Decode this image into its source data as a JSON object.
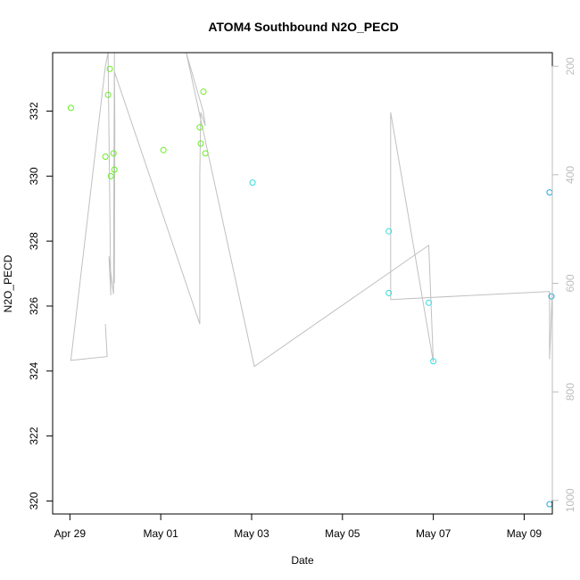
{
  "chart_data": {
    "type": "scatter",
    "title": "ATOM4 Southbound N2O_PECD",
    "xlabel": "Date",
    "ylabel": "N2O_PECD",
    "x_ticks": [
      {
        "day": 0,
        "label": "Apr 29"
      },
      {
        "day": 2,
        "label": "May 01"
      },
      {
        "day": 4,
        "label": "May 03"
      },
      {
        "day": 6,
        "label": "May 05"
      },
      {
        "day": 8,
        "label": "May 07"
      },
      {
        "day": 10,
        "label": "May 09"
      }
    ],
    "xlim": [
      -0.38,
      10.62
    ],
    "ylim": [
      319.6,
      333.8
    ],
    "y_ticks": [
      320,
      322,
      324,
      326,
      328,
      330,
      332
    ],
    "y2_ticks": [
      200,
      400,
      600,
      800,
      1000
    ],
    "y2lim": [
      1025,
      175
    ],
    "series": [
      {
        "color": "#66ee22",
        "points": [
          {
            "day": 0.02,
            "y": 332.1
          },
          {
            "day": 0.78,
            "y": 330.6
          },
          {
            "day": 0.84,
            "y": 332.5
          },
          {
            "day": 0.88,
            "y": 333.3
          },
          {
            "day": 0.9,
            "y": 330.0
          },
          {
            "day": 0.96,
            "y": 330.7
          },
          {
            "day": 0.98,
            "y": 330.2
          },
          {
            "day": 2.06,
            "y": 330.8
          },
          {
            "day": 2.86,
            "y": 331.5
          },
          {
            "day": 2.88,
            "y": 331.0
          },
          {
            "day": 2.94,
            "y": 332.6
          },
          {
            "day": 2.98,
            "y": 330.7
          }
        ]
      },
      {
        "color": "#33dddd",
        "points": [
          {
            "day": 4.02,
            "y": 329.8
          },
          {
            "day": 7.02,
            "y": 328.3
          },
          {
            "day": 7.02,
            "y": 326.4
          },
          {
            "day": 7.9,
            "y": 326.1
          },
          {
            "day": 8.0,
            "y": 324.3
          }
        ]
      },
      {
        "color": "#22aadd",
        "points": [
          {
            "day": 10.56,
            "y": 329.5
          },
          {
            "day": 10.6,
            "y": 326.3
          },
          {
            "day": 10.56,
            "y": 319.9
          }
        ]
      }
    ],
    "altitude_line": {
      "color": "#c0c0c0",
      "points": [
        {
          "day": 0.78,
          "alt": 675
        },
        {
          "day": 0.82,
          "alt": 735
        },
        {
          "day": 0.02,
          "alt": 742
        },
        {
          "day": 0.78,
          "alt": 200
        },
        {
          "day": 0.84,
          "alt": 175
        },
        {
          "day": 0.9,
          "alt": 622
        },
        {
          "day": 0.86,
          "alt": 550
        },
        {
          "day": 0.92,
          "alt": 595
        },
        {
          "day": 0.96,
          "alt": 620
        },
        {
          "day": 0.98,
          "alt": 175
        },
        {
          "day": 0.98,
          "alt": 200
        },
        {
          "day": 0.99,
          "alt": 300
        },
        {
          "day": 0.98,
          "alt": 600
        },
        {
          "day": 0.98,
          "alt": 175
        },
        {
          "day": 0.98,
          "alt": 200
        },
        {
          "day": 0.98,
          "alt": 210
        },
        {
          "day": 2.86,
          "alt": 675
        },
        {
          "day": 2.86,
          "alt": 400
        },
        {
          "day": 2.88,
          "alt": 285
        },
        {
          "day": 2.98,
          "alt": 310
        },
        {
          "day": 2.94,
          "alt": 285
        },
        {
          "day": 2.56,
          "alt": 175
        },
        {
          "day": 4.06,
          "alt": 753
        },
        {
          "day": 7.9,
          "alt": 530
        },
        {
          "day": 8.0,
          "alt": 745
        },
        {
          "day": 7.06,
          "alt": 285
        },
        {
          "day": 7.06,
          "alt": 630
        },
        {
          "day": 10.56,
          "alt": 615
        },
        {
          "day": 10.56,
          "alt": 740
        },
        {
          "day": 10.62,
          "alt": 615
        }
      ]
    }
  }
}
